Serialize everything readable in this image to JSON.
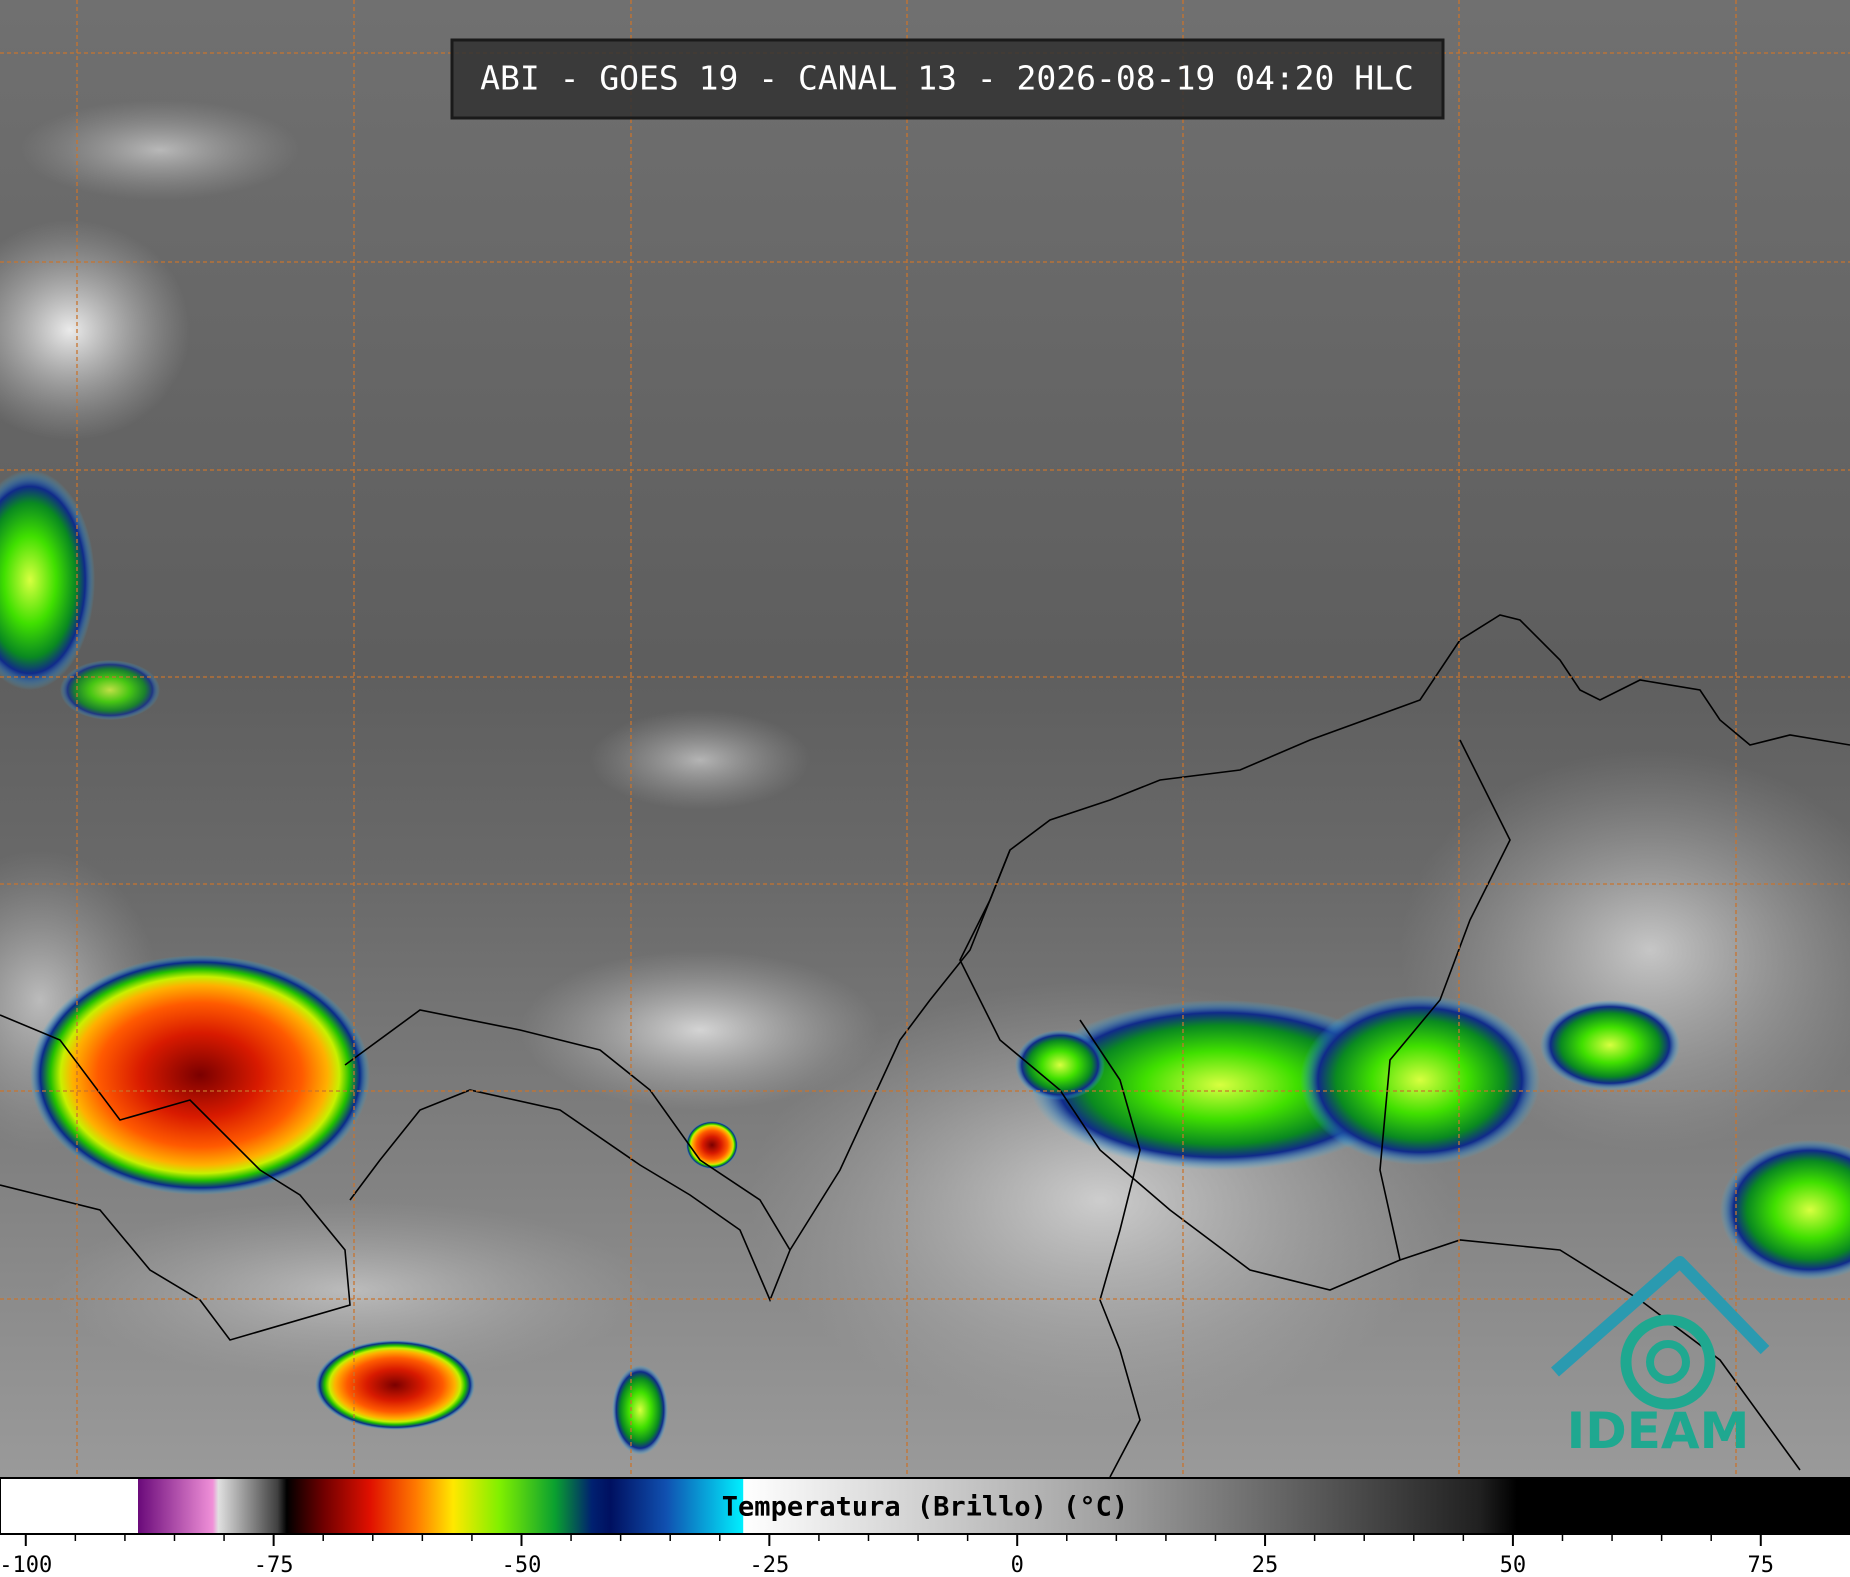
{
  "header": {
    "title": "ABI - GOES 19 - CANAL 13 - 2026-08-19 04:20 HLC"
  },
  "colorbar": {
    "label": "Temperatura (Brillo) (°C)",
    "lim": [
      -102.6,
      84
    ],
    "ticks": [
      -100,
      -75,
      -50,
      -25,
      0,
      25,
      50,
      75
    ]
  },
  "logo": {
    "text": "IDEAM"
  }
}
